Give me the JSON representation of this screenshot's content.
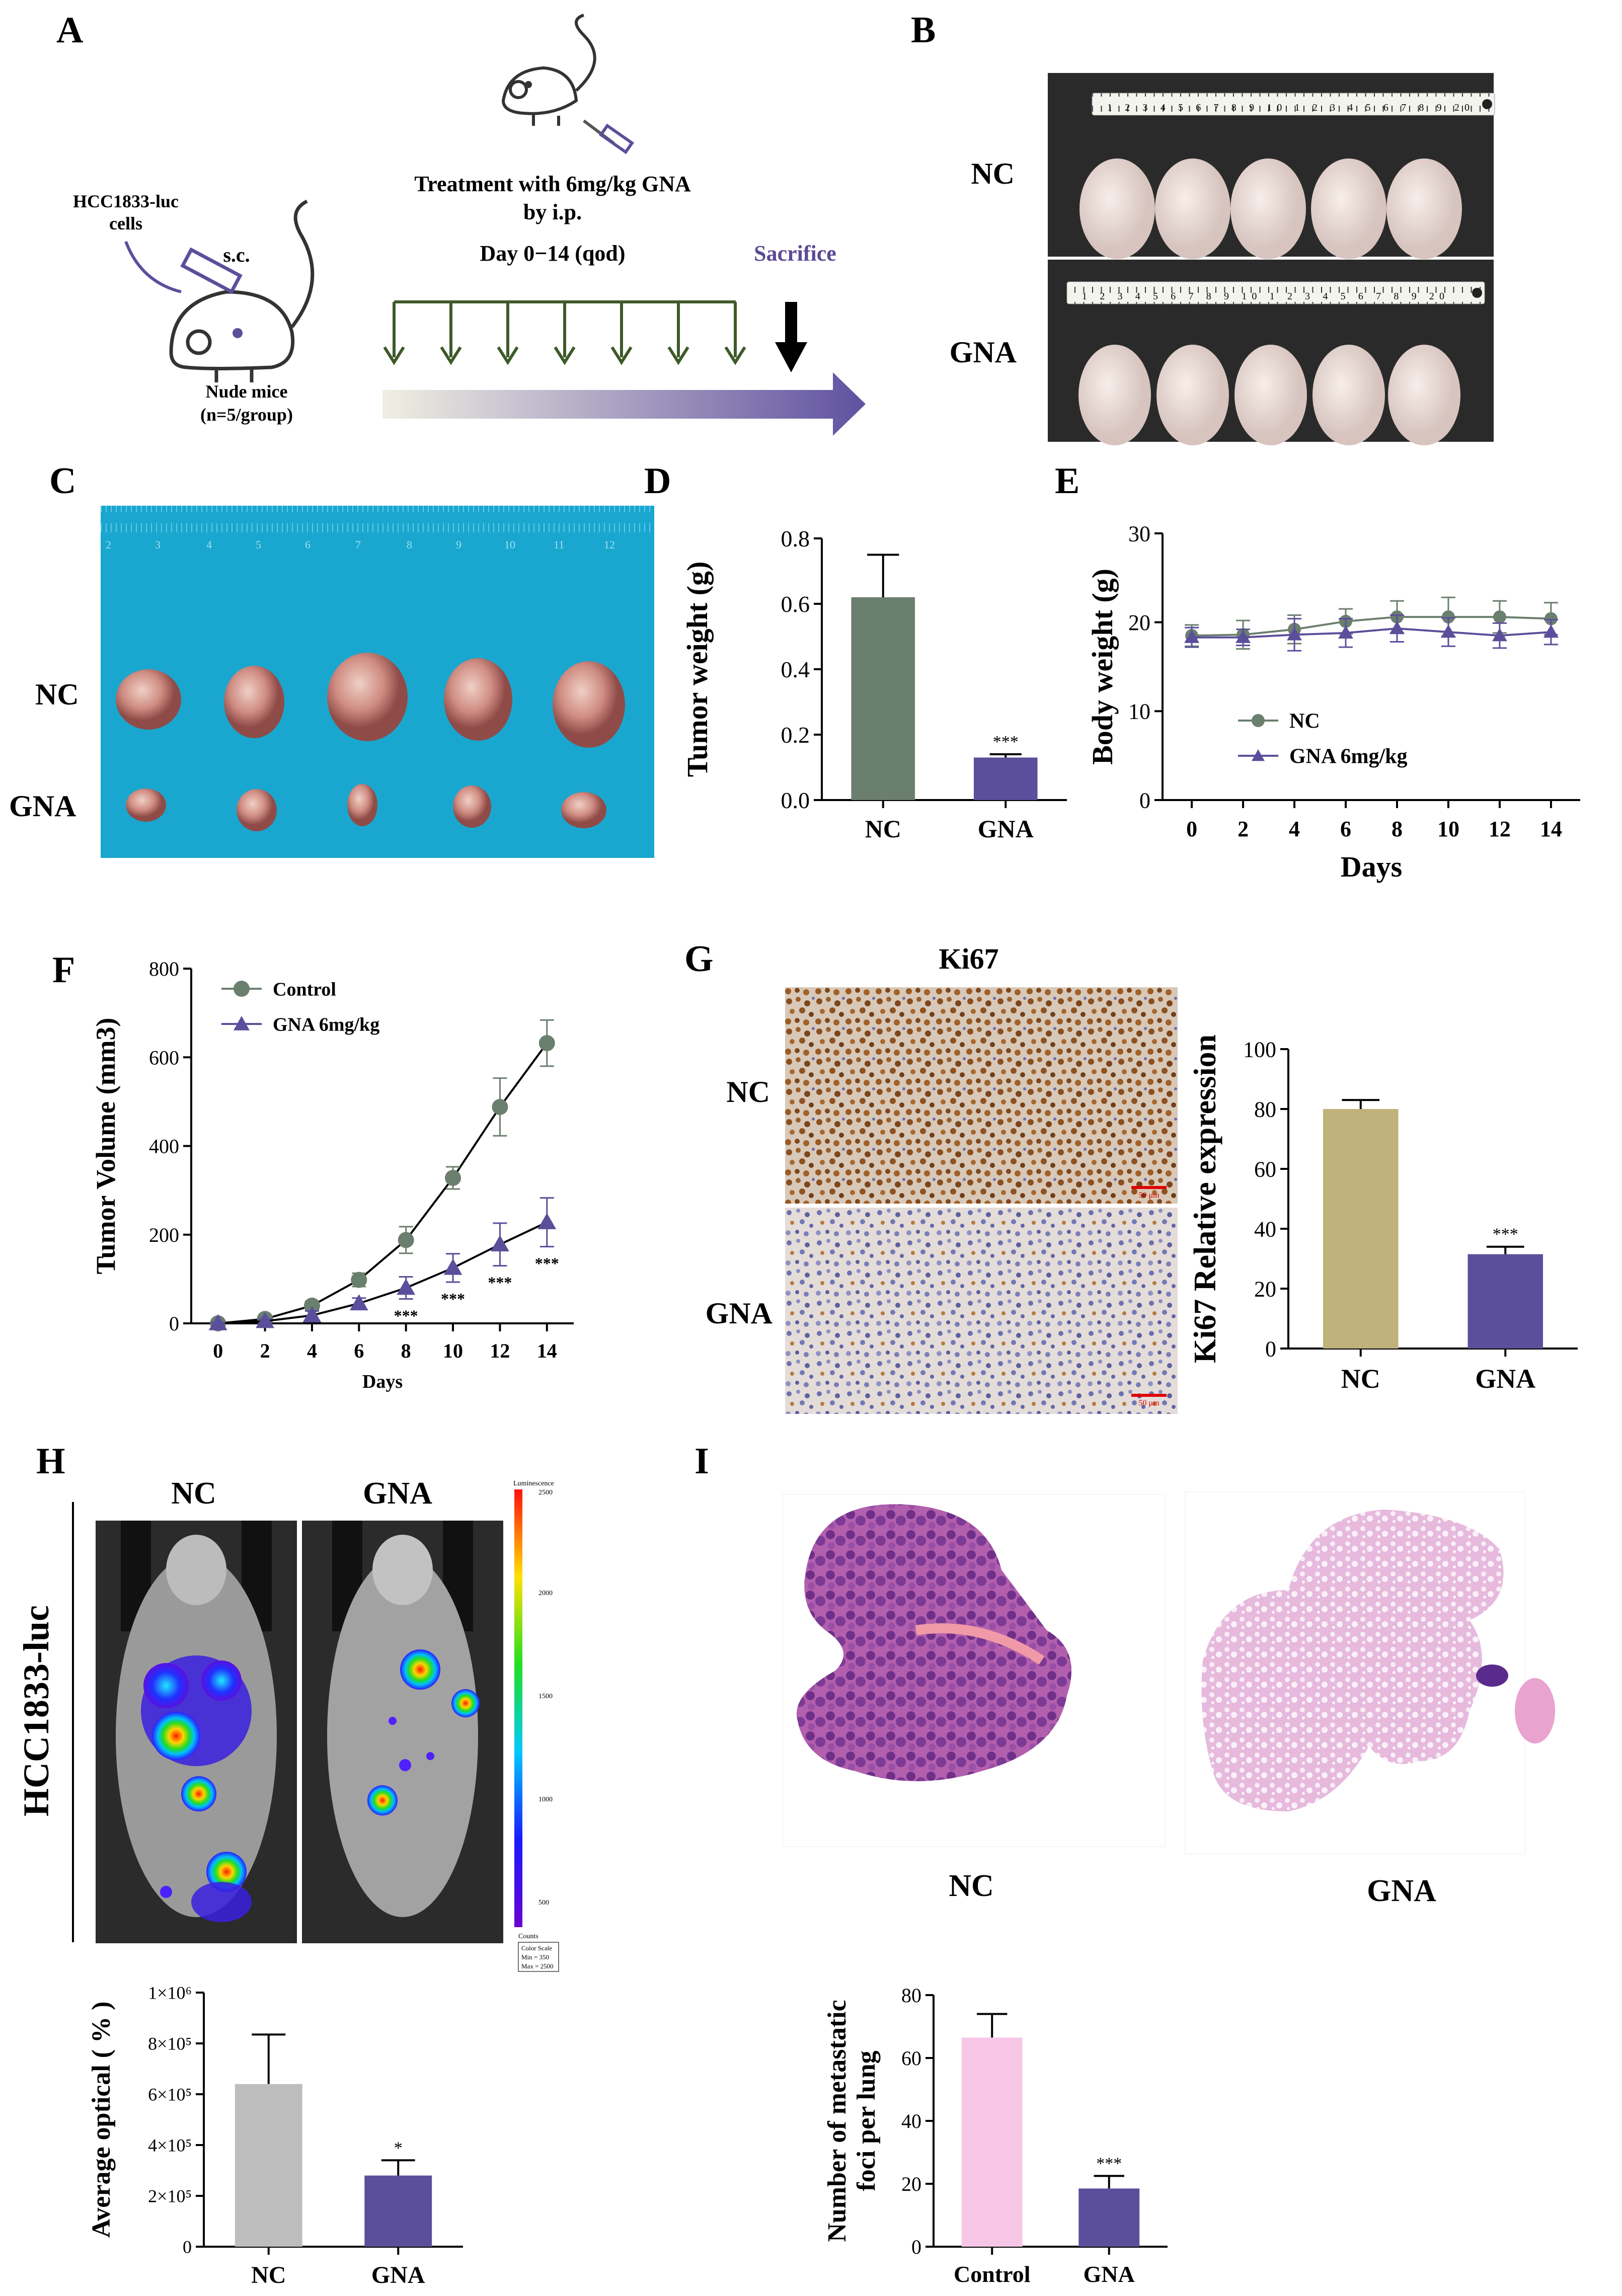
{
  "panel_letters": [
    "A",
    "B",
    "C",
    "D",
    "E",
    "F",
    "G",
    "H",
    "I"
  ],
  "panel_a": {
    "cells_label_1": "HCC1833-luc",
    "cells_label_2": "cells",
    "route": "s.c.",
    "mice_label_1": "Nude mice",
    "mice_label_2": "(n=5/group)",
    "treatment_1": "Treatment with 6mg/kg GNA",
    "treatment_2": "by i.p.",
    "treatment_3": "Day 0−14 (qod)",
    "sacrifice": "Sacrifice",
    "colors": {
      "arrow_green": "#3e5a2a",
      "sacrifice": "#5b4a93",
      "gradient_end": "#5f51a0"
    }
  },
  "panel_b": {
    "row_labels": [
      "NC",
      "GNA"
    ],
    "ruler_text": "1 2 3 4 5 6 7 8 9 10 1 2 3 4 5 6 7 8 9 20"
  },
  "panel_c": {
    "row_labels": [
      "NC",
      "GNA"
    ],
    "ruler_ticks": [
      "2",
      "3",
      "4",
      "5",
      "6",
      "7",
      "8",
      "9",
      "10",
      "11",
      "12"
    ],
    "colors": {
      "board": "#1aa7cf",
      "tumor": "#c9877c"
    }
  },
  "panel_g": {
    "title": "Ki67",
    "row_labels": [
      "NC",
      "GNA"
    ],
    "scale_text": "50 μm"
  },
  "panel_h": {
    "vertical_label": "HCC1833-luc",
    "col_labels": [
      "NC",
      "GNA"
    ],
    "colorbar_title": "Luminescence",
    "colorbar_ticks": [
      "2500",
      "2000",
      "1500",
      "1000",
      "500"
    ],
    "colorbar_counts": "Counts",
    "colorscale_box": [
      "Color Scale",
      "Min = 350",
      "Max = 2500"
    ]
  },
  "panel_i": {
    "image_labels": [
      "NC",
      "GNA"
    ]
  },
  "chart_data": [
    {
      "id": "D",
      "type": "bar",
      "categories": [
        "NC",
        "GNA"
      ],
      "values": [
        0.62,
        0.13
      ],
      "errors": [
        0.13,
        0.01
      ],
      "colors": [
        "#6b7f6e",
        "#5b4f9b"
      ],
      "ylabel": "Tumor weight (g)",
      "ylim": [
        0,
        0.8
      ],
      "yticks": [
        "0.0",
        "0.2",
        "0.4",
        "0.6",
        "0.8"
      ],
      "annotations": [
        {
          "category": "GNA",
          "text": "***"
        }
      ]
    },
    {
      "id": "E",
      "type": "line",
      "x": [
        0,
        2,
        4,
        6,
        8,
        10,
        12,
        14
      ],
      "xticks": [
        "0",
        "2",
        "4",
        "6",
        "8",
        "10",
        "12",
        "14"
      ],
      "series": [
        {
          "name": "NC",
          "values": [
            18.5,
            18.6,
            19.2,
            20.1,
            20.6,
            20.6,
            20.6,
            20.4
          ],
          "errors": [
            1.2,
            1.6,
            1.6,
            1.4,
            1.8,
            2.2,
            1.8,
            1.8
          ],
          "color": "#6b7f6e",
          "marker": "circle"
        },
        {
          "name": "GNA 6mg/kg",
          "values": [
            18.3,
            18.3,
            18.6,
            18.8,
            19.3,
            18.9,
            18.5,
            18.9
          ],
          "errors": [
            1.1,
            0.9,
            1.8,
            1.6,
            1.5,
            1.6,
            1.4,
            1.4
          ],
          "color": "#5b4f9b",
          "marker": "triangle"
        }
      ],
      "xlabel": "Days",
      "ylabel": "Body weight (g)",
      "ylim": [
        0,
        30
      ],
      "yticks": [
        "0",
        "10",
        "20",
        "30"
      ]
    },
    {
      "id": "F",
      "type": "line",
      "x": [
        0,
        2,
        4,
        6,
        8,
        10,
        12,
        14
      ],
      "xticks": [
        "0",
        "2",
        "4",
        "6",
        "8",
        "10",
        "12",
        "14"
      ],
      "series": [
        {
          "name": "Control",
          "values": [
            0,
            10,
            40,
            98,
            188,
            328,
            488,
            632
          ],
          "errors": [
            3,
            5,
            10,
            15,
            30,
            25,
            65,
            52
          ],
          "color": "#6b7f6e",
          "marker": "circle"
        },
        {
          "name": "GNA 6mg/kg",
          "values": [
            0,
            5,
            18,
            45,
            80,
            125,
            178,
            228
          ],
          "errors": [
            2,
            5,
            10,
            12,
            25,
            32,
            48,
            55
          ],
          "color": "#5b4f9b",
          "marker": "triangle"
        }
      ],
      "xlabel": "Days",
      "ylabel": "Tumor Volume (mm3)",
      "ylim": [
        0,
        800
      ],
      "yticks": [
        "0",
        "200",
        "400",
        "600",
        "800"
      ],
      "annotations": [
        {
          "x": 8,
          "text": "***"
        },
        {
          "x": 10,
          "text": "***"
        },
        {
          "x": 12,
          "text": "***"
        },
        {
          "x": 14,
          "text": "***"
        }
      ]
    },
    {
      "id": "G",
      "type": "bar",
      "categories": [
        "NC",
        "GNA"
      ],
      "values": [
        80,
        31.5
      ],
      "errors": [
        3,
        2.5
      ],
      "colors": [
        "#bfb27a",
        "#5b4f9b"
      ],
      "ylabel": "Ki67 Relative expression",
      "ylim": [
        0,
        100
      ],
      "yticks": [
        "0",
        "20",
        "40",
        "60",
        "80",
        "100"
      ],
      "annotations": [
        {
          "category": "GNA",
          "text": "***"
        }
      ]
    },
    {
      "id": "H",
      "type": "bar",
      "categories": [
        "NC",
        "GNA"
      ],
      "values": [
        640000,
        280000
      ],
      "errors": [
        195000,
        60000
      ],
      "colors": [
        "#bdbdbd",
        "#5b4f9b"
      ],
      "ylabel": "Average optical ( % )",
      "ylim": [
        0,
        1000000
      ],
      "yticks": [
        "0",
        "2×10⁵",
        "4×10⁵",
        "6×10⁵",
        "8×10⁵",
        "1×10⁶"
      ],
      "annotations": [
        {
          "category": "GNA",
          "text": "*"
        }
      ]
    },
    {
      "id": "I",
      "type": "bar",
      "categories": [
        "Control",
        "GNA"
      ],
      "values": [
        66.5,
        18.5
      ],
      "errors": [
        7.5,
        4
      ],
      "colors": [
        "#f7c6e6",
        "#5b4f9b"
      ],
      "ylabel_lines": [
        "Number of metastatic",
        "foci per lung"
      ],
      "ylim": [
        0,
        80
      ],
      "yticks": [
        "0",
        "20",
        "40",
        "60",
        "80"
      ],
      "annotations": [
        {
          "category": "GNA",
          "text": "***"
        }
      ]
    }
  ]
}
